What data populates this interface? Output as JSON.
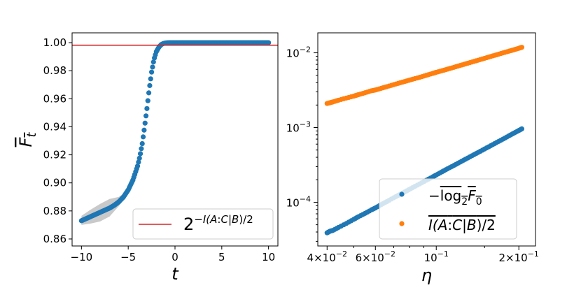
{
  "chart_data": [
    {
      "type": "scatter",
      "panel": "left",
      "xlabel": "t",
      "ylabel": "F̅t",
      "xlim": [
        -11,
        11
      ],
      "ylim": [
        0.855,
        1.007
      ],
      "xticks": [
        -10,
        -5,
        0,
        5,
        10
      ],
      "xtick_labels": [
        "−10",
        "−5",
        "0",
        "5",
        "10"
      ],
      "yticks": [
        0.86,
        0.88,
        0.9,
        0.92,
        0.94,
        0.96,
        0.98,
        1.0
      ],
      "ytick_labels": [
        "0.86",
        "0.88",
        "0.90",
        "0.92",
        "0.94",
        "0.96",
        "0.98",
        "1.00"
      ],
      "series": [
        {
          "name": "F̅t",
          "color": "#1f77b4",
          "x": [
            -10.0,
            -9.5,
            -9.0,
            -8.5,
            -8.0,
            -7.5,
            -7.0,
            -6.5,
            -6.0,
            -5.5,
            -5.0,
            -4.5,
            -4.0,
            -3.75,
            -3.5,
            -3.25,
            -3.0,
            -2.75,
            -2.5,
            -2.25,
            -2.0,
            -1.75,
            -1.5,
            -1.25,
            -1.0,
            -0.5,
            0.0,
            1.0,
            2.0,
            3.0,
            4.0,
            5.0,
            6.0,
            7.0,
            8.0,
            9.0,
            10.0
          ],
          "y": [
            0.873,
            0.8745,
            0.876,
            0.8775,
            0.879,
            0.8805,
            0.882,
            0.884,
            0.8865,
            0.89,
            0.895,
            0.902,
            0.912,
            0.919,
            0.928,
            0.94,
            0.953,
            0.967,
            0.979,
            0.988,
            0.9935,
            0.9965,
            0.9985,
            0.9994,
            0.9998,
            1.0,
            1.0,
            1.0,
            1.0,
            1.0,
            1.0,
            1.0,
            1.0,
            1.0,
            1.0,
            1.0,
            1.0
          ]
        }
      ],
      "band": {
        "color": "#bbbbbb",
        "x": [
          -10.0,
          -9.0,
          -8.0,
          -7.0,
          -6.0,
          -5.5,
          -5.0,
          -4.5
        ],
        "lower": [
          0.87,
          0.871,
          0.8725,
          0.876,
          0.8835,
          0.888,
          0.8935,
          0.901
        ],
        "upper": [
          0.8765,
          0.881,
          0.885,
          0.8885,
          0.89,
          0.8925,
          0.8965,
          0.903
        ]
      },
      "hline": {
        "y": 0.9982,
        "color": "#d62728",
        "label": "2^{-I(A:C|B)/2}"
      }
    },
    {
      "type": "scatter",
      "panel": "right",
      "xscale": "log",
      "yscale": "log",
      "xlabel": "η",
      "xlim": [
        0.037,
        0.23
      ],
      "ylim": [
        2.6e-05,
        0.0185
      ],
      "xticks": [
        0.04,
        0.06,
        0.1,
        0.2
      ],
      "xtick_labels": [
        {
          "mantissa": "4×10",
          "exp": "−2"
        },
        {
          "mantissa": "6×10",
          "exp": "−2"
        },
        {
          "mantissa": "10",
          "exp": "−1"
        },
        {
          "mantissa": "2×10",
          "exp": "−1"
        }
      ],
      "yticks": [
        0.0001,
        0.001,
        0.01
      ],
      "ytick_labels": [
        {
          "mantissa": "10",
          "exp": "−4"
        },
        {
          "mantissa": "10",
          "exp": "−3"
        },
        {
          "mantissa": "10",
          "exp": "−2"
        }
      ],
      "series": [
        {
          "name": "−log2F0",
          "color": "#1f77b4",
          "x": [
            0.04,
            0.041,
            0.042,
            0.044,
            0.047,
            0.05,
            0.052,
            0.055,
            0.058,
            0.06,
            0.063,
            0.066,
            0.07,
            0.074,
            0.078,
            0.082,
            0.087,
            0.092,
            0.097,
            0.1,
            0.105,
            0.11,
            0.116,
            0.122,
            0.128,
            0.135,
            0.142,
            0.15,
            0.158,
            0.166,
            0.175,
            0.184,
            0.192,
            0.2,
            0.205
          ],
          "y": [
            3.9e-05,
            4.1e-05,
            4.2e-05,
            4.6e-05,
            5.2e-05,
            5.9e-05,
            6.4e-05,
            7.1e-05,
            7.9e-05,
            8.4e-05,
            9.3e-05,
            0.000102,
            0.000115,
            0.000128,
            0.000142,
            0.000157,
            0.000176,
            0.000197,
            0.000218,
            0.000232,
            0.000256,
            0.000281,
            0.000311,
            0.000344,
            0.000378,
            0.00042,
            0.000463,
            0.000516,
            0.000572,
            0.000631,
            0.000699,
            0.000774,
            0.000843,
            0.000913,
            0.00096
          ]
        },
        {
          "name": "I(A:C|B)/2",
          "color": "#ff7f0e",
          "x": [
            0.04,
            0.041,
            0.042,
            0.044,
            0.047,
            0.05,
            0.052,
            0.055,
            0.058,
            0.06,
            0.063,
            0.066,
            0.07,
            0.074,
            0.078,
            0.082,
            0.087,
            0.092,
            0.097,
            0.1,
            0.105,
            0.11,
            0.116,
            0.122,
            0.128,
            0.135,
            0.142,
            0.15,
            0.158,
            0.166,
            0.175,
            0.184,
            0.192,
            0.2,
            0.205
          ],
          "y": [
            0.0021,
            0.00215,
            0.0022,
            0.00232,
            0.00248,
            0.00263,
            0.00275,
            0.00292,
            0.0031,
            0.00318,
            0.00335,
            0.00352,
            0.00375,
            0.00398,
            0.0042,
            0.00443,
            0.0047,
            0.005,
            0.0053,
            0.00548,
            0.00576,
            0.00605,
            0.0064,
            0.00676,
            0.00712,
            0.00753,
            0.00796,
            0.00844,
            0.00893,
            0.00941,
            0.00997,
            0.01051,
            0.01098,
            0.0115,
            0.01185
          ]
        }
      ],
      "fit_lines": [
        {
          "color": "#2ca02c",
          "x": [
            0.04,
            0.205
          ],
          "y": [
            3.7e-05,
            0.000965
          ]
        },
        {
          "color": "#d62728",
          "x": [
            0.04,
            0.205
          ],
          "y": [
            0.00208,
            0.0119
          ]
        }
      ]
    }
  ]
}
